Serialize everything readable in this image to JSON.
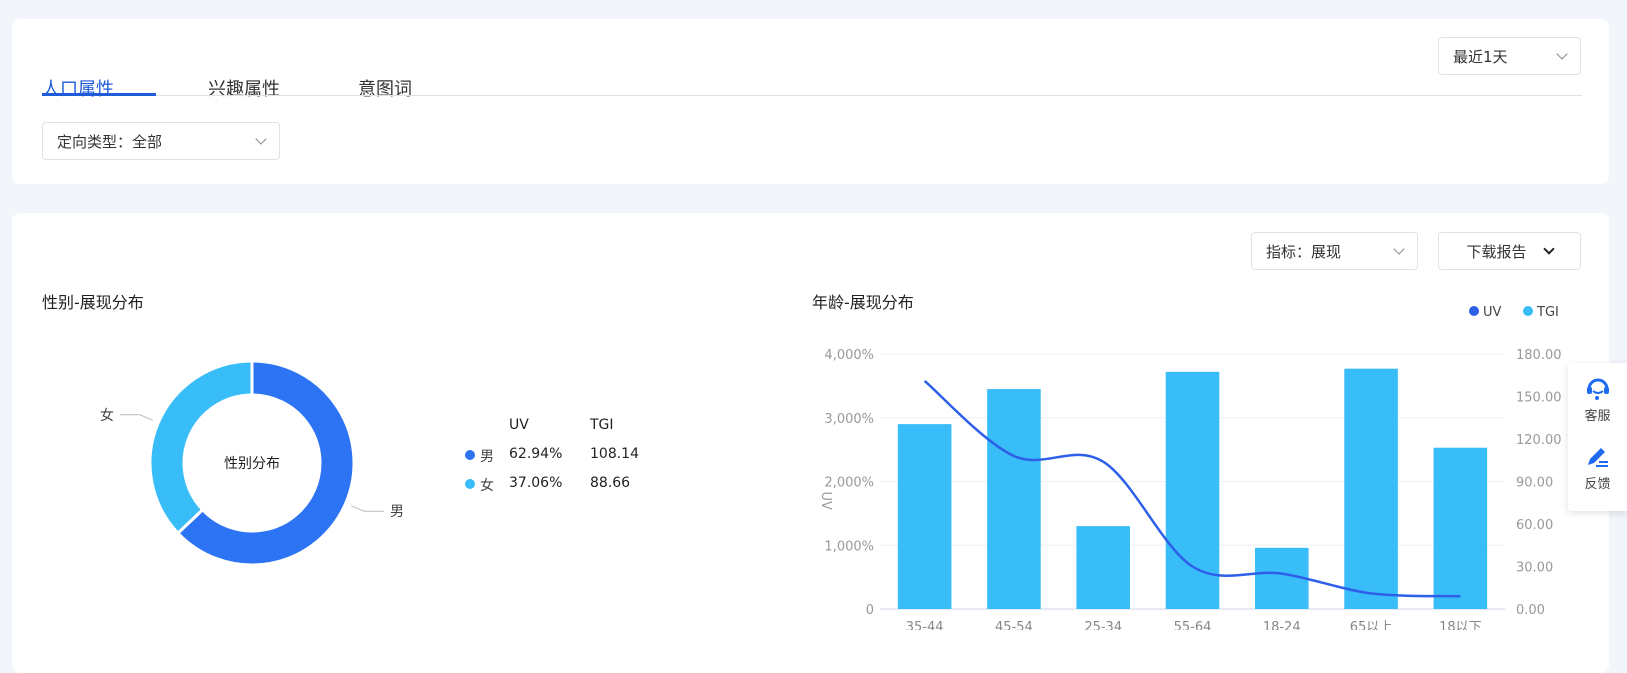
{
  "tabs": [
    {
      "label": "人口属性",
      "active": true
    },
    {
      "label": "兴趣属性"
    },
    {
      "label": "意图词"
    }
  ],
  "date_select": {
    "value": "最近1天"
  },
  "type_select": {
    "value": "定向类型：全部"
  },
  "metric_select": {
    "value": "指标：展现"
  },
  "download_button": {
    "label": "下载报告"
  },
  "gender": {
    "title": "性别-展现分布",
    "center_label": "性别分布",
    "header": {
      "uv": "UV",
      "tgi": "TGI"
    },
    "rows": [
      {
        "name": "男",
        "uv": "62.94%",
        "tgi": "108.14",
        "color": "#2d74f5"
      },
      {
        "name": "女",
        "uv": "37.06%",
        "tgi": "88.66",
        "color": "#38bdf8"
      }
    ]
  },
  "chart_data": [
    {
      "type": "pie",
      "donut": true,
      "categories": [
        "男",
        "女"
      ],
      "values": [
        62.94,
        37.06
      ],
      "colors": [
        "#2d74f5",
        "#38bdf8"
      ],
      "center_label": "性别分布"
    },
    {
      "type": "bar",
      "title": "年龄-展现分布",
      "categories": [
        "35-44",
        "45-54",
        "25-34",
        "55-64",
        "18-24",
        "65以上",
        "18以下"
      ],
      "ylabel": "UV",
      "ylim": [
        0,
        4000
      ],
      "yticks": [
        "0",
        "1,000%",
        "2,000%",
        "3,000%",
        "4,000%"
      ],
      "y2lim": [
        0,
        180
      ],
      "y2ticks": [
        "0.00",
        "30.00",
        "60.00",
        "90.00",
        "120.00",
        "150.00",
        "180.00"
      ],
      "legend": [
        {
          "name": "UV",
          "color": "#2d5fe8"
        },
        {
          "name": "TGI",
          "color": "#38bdf8"
        }
      ],
      "legend_placement": "top-right",
      "grid": true,
      "series": [
        {
          "name": "TGI",
          "kind": "bar",
          "axis": "left",
          "color": "#38bdf8",
          "values": [
            2900,
            3450,
            1300,
            3720,
            960,
            3770,
            2530
          ]
        },
        {
          "name": "UV",
          "kind": "line",
          "axis": "right",
          "color": "#2d5fe8",
          "values": [
            161,
            108,
            104,
            30,
            25,
            11,
            9
          ]
        }
      ]
    }
  ],
  "widget": {
    "service": "客服",
    "feedback": "反馈"
  }
}
